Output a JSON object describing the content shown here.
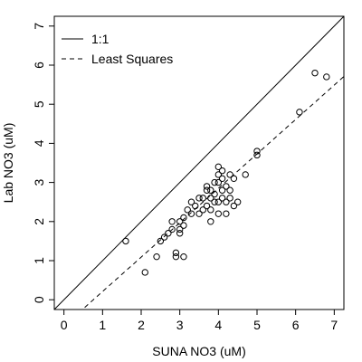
{
  "chart_data": {
    "type": "scatter",
    "xlabel": "SUNA NO3 (uM)",
    "ylabel": "Lab NO3 (uM)",
    "xlim": [
      -0.25,
      7.25
    ],
    "ylim": [
      -0.25,
      7.25
    ],
    "xticks": [
      "0",
      "1",
      "2",
      "3",
      "4",
      "5",
      "6",
      "7"
    ],
    "yticks": [
      "0",
      "1",
      "2",
      "3",
      "4",
      "5",
      "6",
      "7"
    ],
    "grid": false,
    "legend": {
      "placement": "top-left",
      "entries": [
        {
          "label": "1:1",
          "style": "solid"
        },
        {
          "label": "Least Squares",
          "style": "dashed"
        }
      ]
    },
    "lines": {
      "one_to_one": {
        "slope": 1,
        "intercept": 0
      },
      "least_squares": {
        "slope": 0.88,
        "intercept": -0.67
      }
    },
    "series": [
      {
        "marker": "open-circle",
        "x": [
          1.6,
          2.1,
          2.4,
          2.5,
          2.6,
          2.7,
          2.8,
          2.8,
          2.9,
          2.9,
          3.0,
          3.0,
          3.0,
          3.1,
          3.1,
          3.1,
          3.2,
          3.3,
          3.3,
          3.4,
          3.5,
          3.5,
          3.6,
          3.6,
          3.7,
          3.7,
          3.7,
          3.8,
          3.8,
          3.8,
          3.8,
          3.9,
          3.9,
          3.9,
          4.0,
          4.0,
          4.0,
          4.0,
          4.0,
          4.1,
          4.1,
          4.1,
          4.1,
          4.2,
          4.2,
          4.2,
          4.3,
          4.3,
          4.3,
          4.4,
          4.4,
          4.5,
          4.7,
          5.0,
          5.0,
          6.1,
          6.5,
          6.8
        ],
        "y": [
          1.5,
          0.7,
          1.1,
          1.5,
          1.6,
          1.7,
          1.8,
          2.0,
          1.1,
          1.2,
          1.7,
          1.8,
          2.0,
          1.1,
          1.9,
          2.1,
          2.3,
          2.2,
          2.5,
          2.4,
          2.2,
          2.6,
          2.3,
          2.6,
          2.4,
          2.8,
          2.9,
          2.0,
          2.3,
          2.6,
          2.8,
          2.5,
          2.7,
          3.0,
          2.2,
          2.5,
          3.0,
          3.2,
          3.4,
          2.6,
          2.8,
          3.1,
          3.3,
          2.2,
          2.5,
          2.9,
          2.6,
          2.8,
          3.2,
          2.4,
          3.1,
          2.5,
          3.2,
          3.7,
          3.8,
          4.8,
          5.8,
          5.7
        ]
      }
    ]
  }
}
